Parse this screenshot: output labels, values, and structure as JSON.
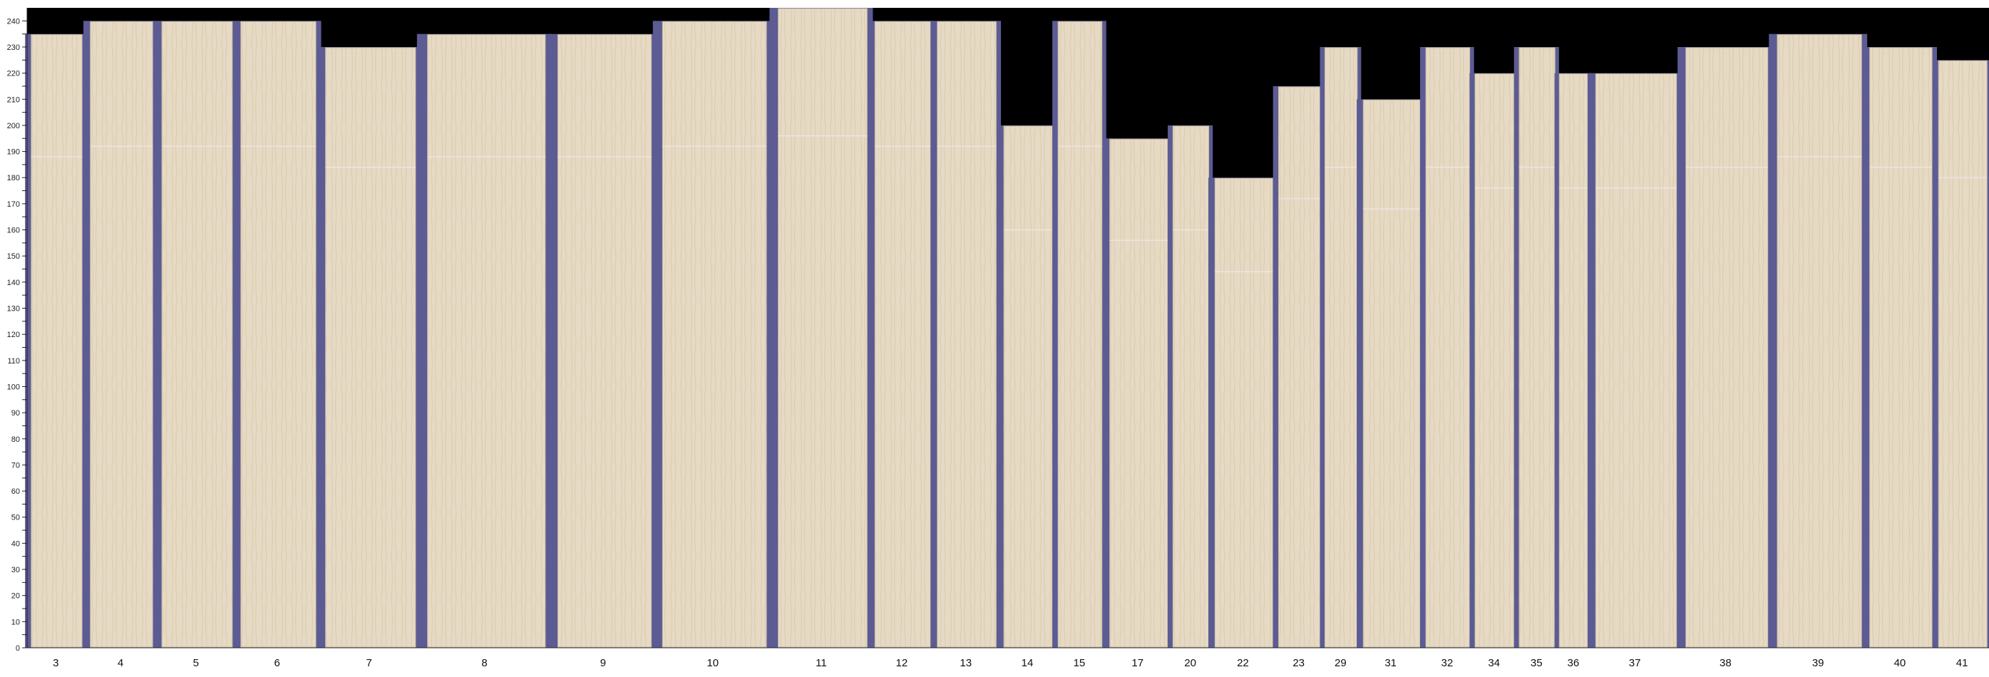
{
  "chart_data": {
    "type": "bar",
    "title": "",
    "xlabel": "",
    "ylabel": "",
    "ylim": [
      0,
      245
    ],
    "yticks": [
      0,
      10,
      20,
      30,
      40,
      50,
      60,
      70,
      80,
      90,
      100,
      110,
      120,
      130,
      140,
      150,
      160,
      170,
      180,
      190,
      200,
      210,
      220,
      230,
      240
    ],
    "grid": false,
    "categories": [
      "3",
      "4",
      "5",
      "6",
      "7",
      "8",
      "9",
      "10",
      "11",
      "12",
      "13",
      "14",
      "15",
      "17",
      "20",
      "22",
      "23",
      "29",
      "31",
      "32",
      "34",
      "35",
      "36",
      "37",
      "38",
      "39",
      "40",
      "41"
    ],
    "values": [
      235,
      240,
      240,
      240,
      230,
      235,
      235,
      240,
      245,
      240,
      240,
      200,
      240,
      195,
      200,
      180,
      215,
      230,
      210,
      230,
      220,
      230,
      220,
      220,
      230,
      235,
      230,
      225
    ],
    "colors": {
      "background": "#000000",
      "slot": "#5c5b93",
      "board": "#e6dac5",
      "grain": "#d9c9a8"
    }
  }
}
